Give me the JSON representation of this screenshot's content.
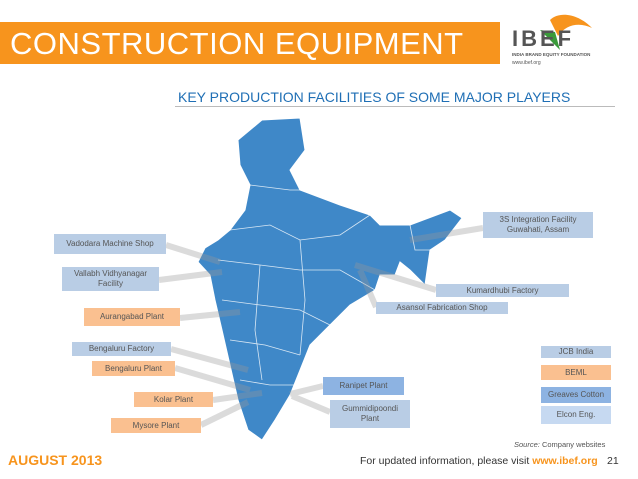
{
  "header": {
    "title": "CONSTRUCTION EQUIPMENT",
    "logo": "IBEF",
    "logo_tagline": "INDIA BRAND EQUITY FOUNDATION",
    "logo_url": "www.ibef.org"
  },
  "subtitle": "KEY PRODUCTION FACILITIES OF SOME MAJOR PLAYERS",
  "labels": [
    {
      "lines": [
        "3S Integration Facility",
        "Guwahati, Assam"
      ],
      "color": "#b9cde5"
    },
    {
      "lines": [
        "Vadodara Machine Shop"
      ],
      "color": "#b9cde5"
    },
    {
      "lines": [
        "Vallabh Vidhyanagar",
        "Facility"
      ],
      "color": "#b9cde5"
    },
    {
      "lines": [
        "Kumardhubi Factory"
      ],
      "color": "#b9cde5"
    },
    {
      "lines": [
        "Asansol Fabrication Shop"
      ],
      "color": "#b9cde5"
    },
    {
      "lines": [
        "Aurangabad Plant"
      ],
      "color": "#fac090"
    },
    {
      "lines": [
        "Bengaluru Factory"
      ],
      "color": "#b9cde5"
    },
    {
      "lines": [
        "Bengaluru Plant"
      ],
      "color": "#fac090"
    },
    {
      "lines": [
        "Ranipet Plant"
      ],
      "color": "#8db3e2"
    },
    {
      "lines": [
        "Kolar Plant"
      ],
      "color": "#fac090"
    },
    {
      "lines": [
        "Gummidipoondi",
        "Plant"
      ],
      "color": "#b9cde5"
    },
    {
      "lines": [
        "Mysore Plant"
      ],
      "color": "#fac090"
    }
  ],
  "legend": [
    {
      "name": "JCB India",
      "color": "#b9cde5"
    },
    {
      "name": "BEML",
      "color": "#fac090"
    },
    {
      "name": "Greaves Cotton",
      "color": "#8db3e2"
    },
    {
      "name": "Elcon Eng.",
      "color": "#c6d9f1"
    }
  ],
  "source": {
    "label": "Source:",
    "text": "Company websites"
  },
  "footer": {
    "date": "AUGUST 2013",
    "note": "For updated information, please visit",
    "url": "www.ibef.org",
    "page": "21"
  }
}
